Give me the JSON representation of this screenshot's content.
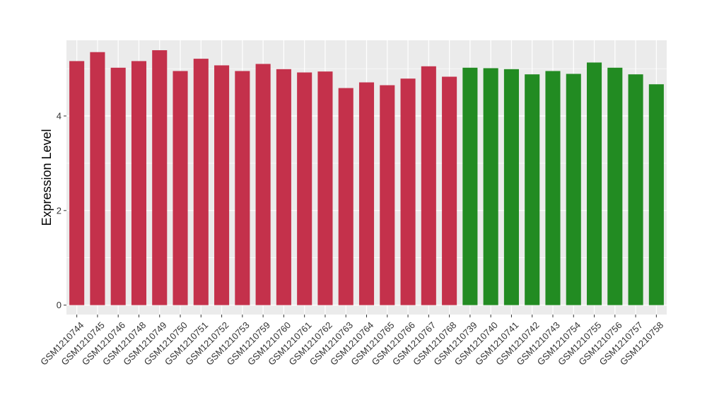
{
  "chart_data": {
    "type": "bar",
    "title": "",
    "xlabel": "",
    "ylabel": "Expression Level",
    "ylim": [
      -0.2,
      5.6
    ],
    "yticks": [
      0,
      2,
      4
    ],
    "grid": true,
    "categories": [
      "GSM1210744",
      "GSM1210745",
      "GSM1210746",
      "GSM1210748",
      "GSM1210749",
      "GSM1210750",
      "GSM1210751",
      "GSM1210752",
      "GSM1210753",
      "GSM1210759",
      "GSM1210760",
      "GSM1210761",
      "GSM1210762",
      "GSM1210763",
      "GSM1210764",
      "GSM1210765",
      "GSM1210766",
      "GSM1210767",
      "GSM1210768",
      "GSM1210739",
      "GSM1210740",
      "GSM1210741",
      "GSM1210742",
      "GSM1210743",
      "GSM1210754",
      "GSM1210755",
      "GSM1210756",
      "GSM1210757",
      "GSM1210758"
    ],
    "values": [
      5.16,
      5.35,
      5.02,
      5.16,
      5.39,
      4.95,
      5.21,
      5.07,
      4.95,
      5.1,
      4.99,
      4.92,
      4.94,
      4.59,
      4.71,
      4.65,
      4.79,
      5.05,
      4.83,
      5.02,
      5.01,
      4.99,
      4.88,
      4.95,
      4.89,
      5.13,
      5.02,
      4.88,
      4.67
    ],
    "bar_colors": [
      "#C4314B",
      "#C4314B",
      "#C4314B",
      "#C4314B",
      "#C4314B",
      "#C4314B",
      "#C4314B",
      "#C4314B",
      "#C4314B",
      "#C4314B",
      "#C4314B",
      "#C4314B",
      "#C4314B",
      "#C4314B",
      "#C4314B",
      "#C4314B",
      "#C4314B",
      "#C4314B",
      "#C4314B",
      "#228B22",
      "#228B22",
      "#228B22",
      "#228B22",
      "#228B22",
      "#228B22",
      "#228B22",
      "#228B22",
      "#228B22",
      "#228B22"
    ],
    "panel_color": "#EBEBEB",
    "grid_color": "#FFFFFF"
  }
}
